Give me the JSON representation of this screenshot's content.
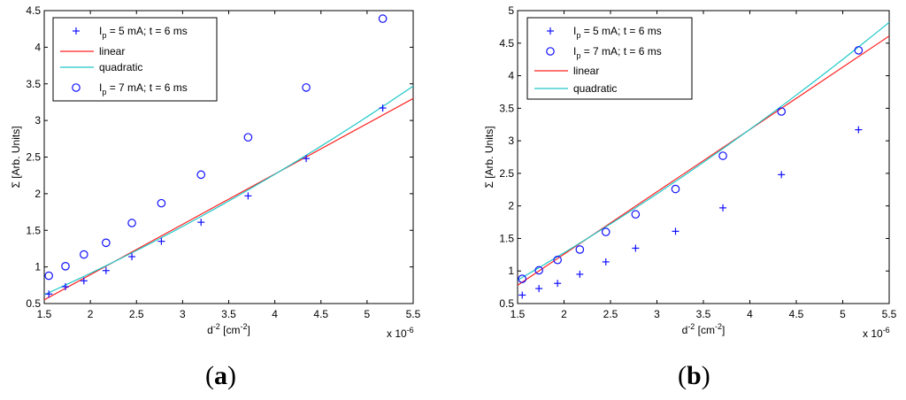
{
  "panels": {
    "a": {
      "label_open": "(",
      "label_letter": "a",
      "label_close": ")"
    },
    "b": {
      "label_open": "(",
      "label_letter": "b",
      "label_close": ")"
    }
  },
  "colors": {
    "marker": "#1010ff",
    "linear": "#ff2020",
    "quadratic": "#20c8c8",
    "frame": "#000000"
  },
  "chart_data": [
    {
      "type": "scatter",
      "title": "",
      "xlabel": "d-2 [cm-2]",
      "ylabel": "Σ [Arb. Units]",
      "x_multiplier": "x 10-6",
      "xlim": [
        1.5,
        5.5
      ],
      "ylim": [
        0.5,
        4.5
      ],
      "xticks": [
        1.5,
        2,
        2.5,
        3,
        3.5,
        4,
        4.5,
        5,
        5.5
      ],
      "yticks": [
        0.5,
        1,
        1.5,
        2,
        2.5,
        3,
        3.5,
        4,
        4.5
      ],
      "legend_position": "top-left",
      "legend": [
        {
          "kind": "plus",
          "text": "I",
          "sub": "p",
          "rest": " = 5 mA; t = 6 ms"
        },
        {
          "kind": "linear",
          "text": "linear",
          "sub": "",
          "rest": ""
        },
        {
          "kind": "quadratic",
          "text": "quadratic",
          "sub": "",
          "rest": ""
        },
        {
          "kind": "circle",
          "text": "I",
          "sub": "p",
          "rest": " = 7 mA; t = 6 ms"
        }
      ],
      "series": [
        {
          "name": "Ip = 5 mA; t = 6 ms",
          "marker": "plus",
          "x": [
            1.55,
            1.73,
            1.93,
            2.17,
            2.45,
            2.77,
            3.2,
            3.71,
            4.34,
            5.17
          ],
          "y": [
            0.63,
            0.73,
            0.81,
            0.95,
            1.14,
            1.35,
            1.61,
            1.97,
            2.48,
            3.17
          ]
        },
        {
          "name": "Ip = 7 mA; t = 6 ms",
          "marker": "circle",
          "x": [
            1.55,
            1.73,
            1.93,
            2.17,
            2.45,
            2.77,
            3.2,
            3.71,
            4.34,
            5.17
          ],
          "y": [
            0.88,
            1.01,
            1.17,
            1.33,
            1.6,
            1.87,
            2.26,
            2.77,
            3.45,
            4.39
          ]
        },
        {
          "name": "linear",
          "line": "linear",
          "x": [
            1.5,
            5.5
          ],
          "y": [
            0.55,
            3.3
          ]
        },
        {
          "name": "quadratic",
          "line": "quadratic",
          "x": [
            1.5,
            3.5,
            5.5
          ],
          "y": [
            0.62,
            1.9,
            3.47
          ]
        }
      ]
    },
    {
      "type": "scatter",
      "title": "",
      "xlabel": "d-2 [cm-2]",
      "ylabel": "Σ [Arb. Units]",
      "x_multiplier": "x 10-6",
      "xlim": [
        1.5,
        5.5
      ],
      "ylim": [
        0.5,
        5
      ],
      "xticks": [
        1.5,
        2,
        2.5,
        3,
        3.5,
        4,
        4.5,
        5,
        5.5
      ],
      "yticks": [
        0.5,
        1,
        1.5,
        2,
        2.5,
        3,
        3.5,
        4,
        4.5,
        5
      ],
      "legend_position": "top-left",
      "legend": [
        {
          "kind": "plus",
          "text": "I",
          "sub": "p",
          "rest": " = 5 mA; t = 6 ms"
        },
        {
          "kind": "circle",
          "text": "I",
          "sub": "p",
          "rest": " = 7 mA; t = 6 ms"
        },
        {
          "kind": "linear",
          "text": "linear",
          "sub": "",
          "rest": ""
        },
        {
          "kind": "quadratic",
          "text": "quadratic",
          "sub": "",
          "rest": ""
        }
      ],
      "series": [
        {
          "name": "Ip = 5 mA; t = 6 ms",
          "marker": "plus",
          "x": [
            1.55,
            1.73,
            1.93,
            2.17,
            2.45,
            2.77,
            3.2,
            3.71,
            4.34,
            5.17
          ],
          "y": [
            0.63,
            0.73,
            0.81,
            0.95,
            1.14,
            1.35,
            1.61,
            1.97,
            2.48,
            3.17
          ]
        },
        {
          "name": "Ip = 7 mA; t = 6 ms",
          "marker": "circle",
          "x": [
            1.55,
            1.73,
            1.93,
            2.17,
            2.45,
            2.77,
            3.2,
            3.71,
            4.34,
            5.17
          ],
          "y": [
            0.88,
            1.01,
            1.17,
            1.33,
            1.6,
            1.87,
            2.26,
            2.77,
            3.45,
            4.39
          ]
        },
        {
          "name": "linear",
          "line": "linear",
          "x": [
            1.5,
            5.5
          ],
          "y": [
            0.78,
            4.61
          ]
        },
        {
          "name": "quadratic",
          "line": "quadratic",
          "x": [
            1.5,
            3.5,
            5.5
          ],
          "y": [
            0.86,
            2.67,
            4.82
          ]
        }
      ]
    }
  ]
}
